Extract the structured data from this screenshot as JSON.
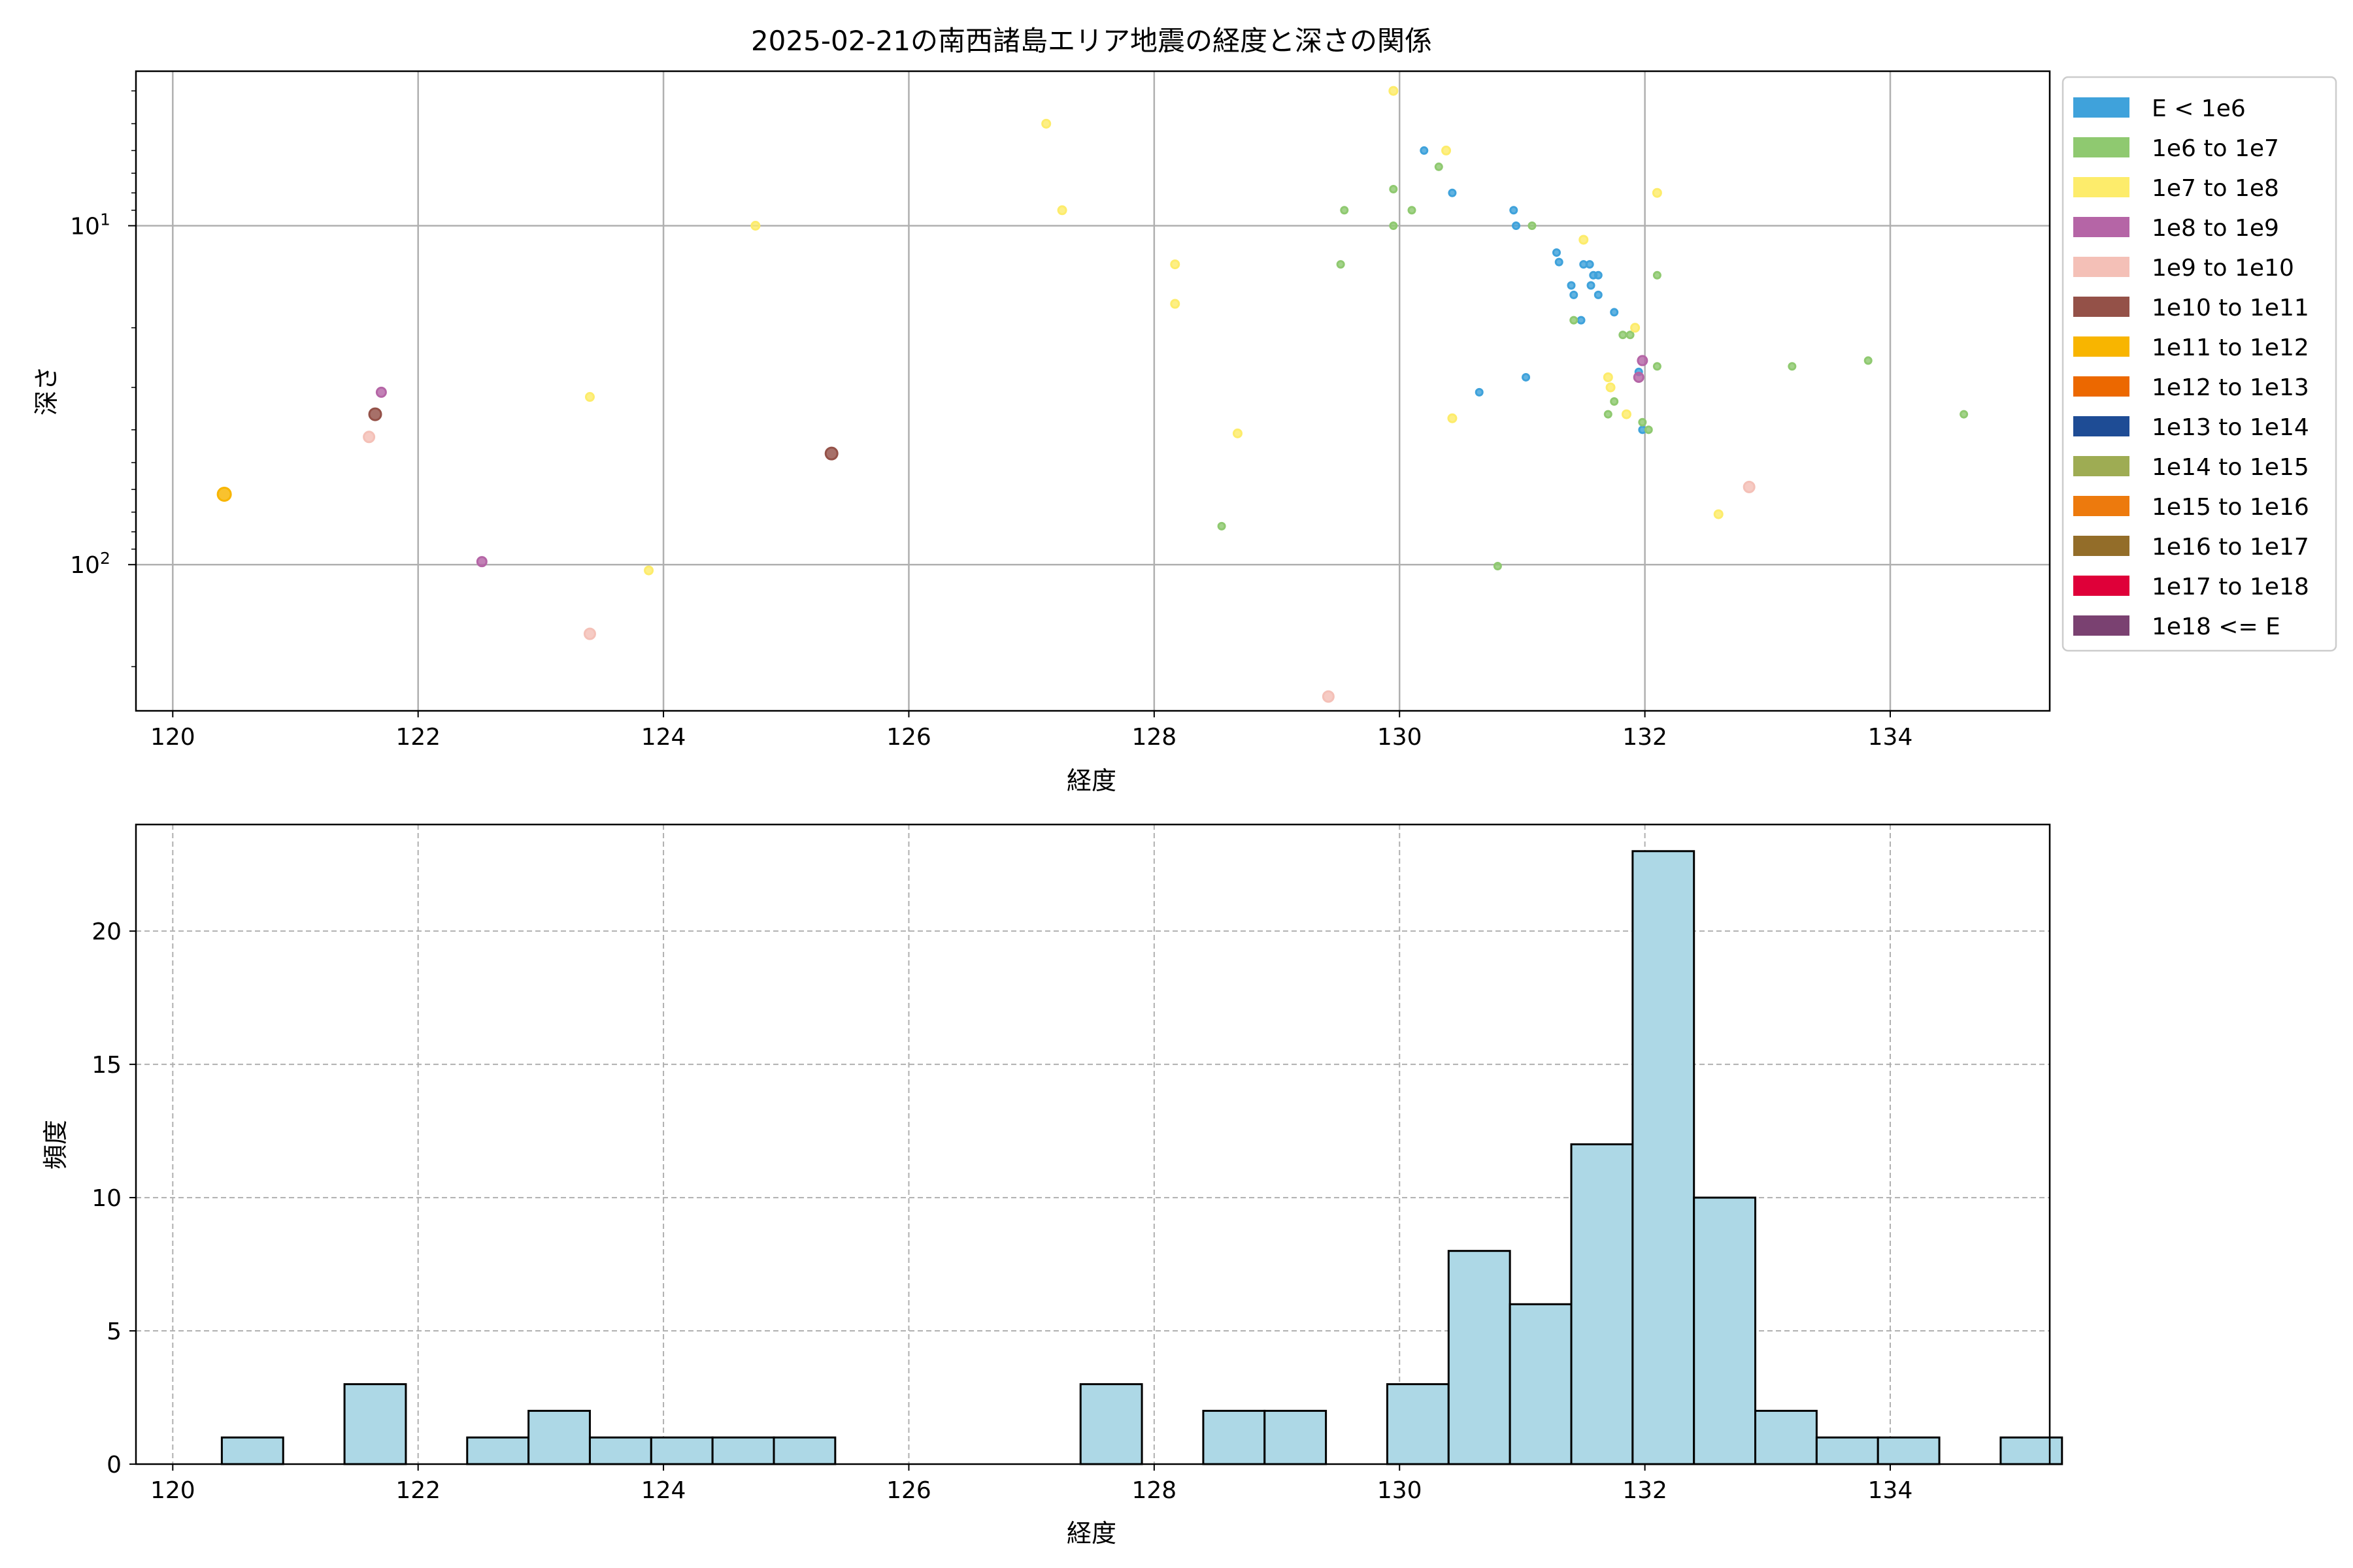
{
  "chart_data": [
    {
      "type": "scatter",
      "title": "2025-02-21の南西諸島エリア地震の経度と深さの関係",
      "xlabel": "経度",
      "ylabel": "深さ",
      "xlim": [
        119.7,
        135.3
      ],
      "ylim": [
        270,
        3.5
      ],
      "yscale": "log",
      "y_inverted": true,
      "grid": true,
      "x_ticks": [
        120,
        122,
        124,
        126,
        128,
        130,
        132,
        134
      ],
      "y_ticks": [
        {
          "value": 10,
          "base": "10",
          "exp": "1"
        },
        {
          "value": 100,
          "base": "10",
          "exp": "2"
        }
      ],
      "legend_position": "outside-right",
      "legend": [
        {
          "label": "E < 1e6",
          "color": "#3fa2db"
        },
        {
          "label": "1e6 to 1e7",
          "color": "#8fc970"
        },
        {
          "label": "1e7 to 1e8",
          "color": "#fdec6b"
        },
        {
          "label": "1e8 to 1e9",
          "color": "#b565a6"
        },
        {
          "label": "1e9 to 1e10",
          "color": "#f4c0b7"
        },
        {
          "label": "1e10 to 1e11",
          "color": "#945148"
        },
        {
          "label": "1e11 to 1e12",
          "color": "#f8b500"
        },
        {
          "label": "1e12 to 1e13",
          "color": "#ec6800"
        },
        {
          "label": "1e13 to 1e14",
          "color": "#1e4c95"
        },
        {
          "label": "1e14 to 1e15",
          "color": "#9eac53"
        },
        {
          "label": "1e15 to 1e16",
          "color": "#ed7a0d"
        },
        {
          "label": "1e16 to 1e17",
          "color": "#936d29"
        },
        {
          "label": "1e17 to 1e18",
          "color": "#df0039"
        },
        {
          "label": "1e18 <= E",
          "color": "#7a4171"
        }
      ],
      "points": [
        {
          "x": 130.2,
          "y": 6.0,
          "c": 0
        },
        {
          "x": 130.43,
          "y": 8.0,
          "c": 0
        },
        {
          "x": 130.93,
          "y": 9.0,
          "c": 0
        },
        {
          "x": 130.95,
          "y": 10.0,
          "c": 0
        },
        {
          "x": 131.28,
          "y": 12.0,
          "c": 0
        },
        {
          "x": 131.3,
          "y": 12.8,
          "c": 0
        },
        {
          "x": 131.4,
          "y": 15.0,
          "c": 0
        },
        {
          "x": 131.42,
          "y": 16.0,
          "c": 0
        },
        {
          "x": 131.48,
          "y": 19.0,
          "c": 0
        },
        {
          "x": 131.5,
          "y": 13.0,
          "c": 0
        },
        {
          "x": 131.55,
          "y": 13.0,
          "c": 0
        },
        {
          "x": 131.56,
          "y": 15.0,
          "c": 0
        },
        {
          "x": 131.58,
          "y": 14.0,
          "c": 0
        },
        {
          "x": 131.62,
          "y": 14.0,
          "c": 0
        },
        {
          "x": 131.62,
          "y": 16.0,
          "c": 0
        },
        {
          "x": 131.75,
          "y": 18.0,
          "c": 0
        },
        {
          "x": 131.95,
          "y": 27.0,
          "c": 0
        },
        {
          "x": 131.98,
          "y": 40.0,
          "c": 0
        },
        {
          "x": 131.03,
          "y": 28.0,
          "c": 0
        },
        {
          "x": 130.65,
          "y": 31.0,
          "c": 0
        },
        {
          "x": 129.55,
          "y": 9.0,
          "c": 1
        },
        {
          "x": 129.52,
          "y": 13.0,
          "c": 1
        },
        {
          "x": 129.95,
          "y": 7.8,
          "c": 1
        },
        {
          "x": 129.95,
          "y": 10.0,
          "c": 1
        },
        {
          "x": 130.1,
          "y": 9.0,
          "c": 1
        },
        {
          "x": 130.32,
          "y": 6.7,
          "c": 1
        },
        {
          "x": 131.08,
          "y": 10.0,
          "c": 1
        },
        {
          "x": 131.42,
          "y": 19.0,
          "c": 1
        },
        {
          "x": 131.82,
          "y": 21.0,
          "c": 1
        },
        {
          "x": 131.88,
          "y": 21.0,
          "c": 1
        },
        {
          "x": 132.1,
          "y": 14.0,
          "c": 1
        },
        {
          "x": 132.1,
          "y": 26.0,
          "c": 1
        },
        {
          "x": 133.2,
          "y": 26.0,
          "c": 1
        },
        {
          "x": 133.82,
          "y": 25.0,
          "c": 1
        },
        {
          "x": 134.6,
          "y": 36.0,
          "c": 1
        },
        {
          "x": 131.7,
          "y": 36.0,
          "c": 1
        },
        {
          "x": 131.75,
          "y": 33.0,
          "c": 1
        },
        {
          "x": 131.98,
          "y": 38.0,
          "c": 1
        },
        {
          "x": 132.03,
          "y": 40.0,
          "c": 1
        },
        {
          "x": 128.55,
          "y": 77.0,
          "c": 1
        },
        {
          "x": 130.8,
          "y": 101.0,
          "c": 1
        },
        {
          "x": 129.95,
          "y": 4.0,
          "c": 2
        },
        {
          "x": 127.12,
          "y": 5.0,
          "c": 2
        },
        {
          "x": 127.25,
          "y": 9.0,
          "c": 2
        },
        {
          "x": 130.38,
          "y": 6.0,
          "c": 2
        },
        {
          "x": 124.75,
          "y": 10.0,
          "c": 2
        },
        {
          "x": 128.17,
          "y": 13.0,
          "c": 2
        },
        {
          "x": 128.17,
          "y": 17.0,
          "c": 2
        },
        {
          "x": 131.5,
          "y": 11.0,
          "c": 2
        },
        {
          "x": 131.92,
          "y": 20.0,
          "c": 2
        },
        {
          "x": 131.7,
          "y": 28.0,
          "c": 2
        },
        {
          "x": 131.72,
          "y": 30.0,
          "c": 2
        },
        {
          "x": 131.85,
          "y": 36.0,
          "c": 2
        },
        {
          "x": 132.1,
          "y": 8.0,
          "c": 2
        },
        {
          "x": 130.43,
          "y": 37.0,
          "c": 2
        },
        {
          "x": 128.68,
          "y": 41.0,
          "c": 2
        },
        {
          "x": 123.4,
          "y": 32.0,
          "c": 2
        },
        {
          "x": 123.88,
          "y": 104.0,
          "c": 2
        },
        {
          "x": 132.6,
          "y": 71.0,
          "c": 2
        },
        {
          "x": 121.7,
          "y": 31.0,
          "c": 3
        },
        {
          "x": 122.52,
          "y": 98.0,
          "c": 3
        },
        {
          "x": 131.98,
          "y": 25.0,
          "c": 3
        },
        {
          "x": 131.95,
          "y": 28.0,
          "c": 3
        },
        {
          "x": 121.6,
          "y": 42.0,
          "c": 4
        },
        {
          "x": 123.4,
          "y": 160.0,
          "c": 4
        },
        {
          "x": 129.42,
          "y": 245.0,
          "c": 4
        },
        {
          "x": 132.85,
          "y": 59.0,
          "c": 4
        },
        {
          "x": 121.65,
          "y": 36.0,
          "c": 5
        },
        {
          "x": 125.37,
          "y": 47.0,
          "c": 5
        },
        {
          "x": 120.42,
          "y": 62.0,
          "c": 6
        }
      ]
    },
    {
      "type": "histogram",
      "xlabel": "経度",
      "ylabel": "頻度",
      "xlim": [
        119.7,
        135.3
      ],
      "ylim": [
        0,
        24
      ],
      "grid": true,
      "grid_style": "dashed",
      "bar_color": "#add8e6",
      "edge_color": "#000000",
      "x_ticks": [
        120,
        122,
        124,
        126,
        128,
        130,
        132,
        134
      ],
      "y_ticks": [
        0,
        5,
        10,
        15,
        20
      ],
      "bin_start": 120.4,
      "bin_width": 0.5,
      "counts": [
        1,
        0,
        3,
        0,
        1,
        2,
        1,
        1,
        1,
        1,
        0,
        0,
        0,
        0,
        3,
        0,
        2,
        2,
        0,
        3,
        8,
        6,
        12,
        23,
        10,
        2,
        1,
        1,
        0,
        1
      ]
    }
  ]
}
